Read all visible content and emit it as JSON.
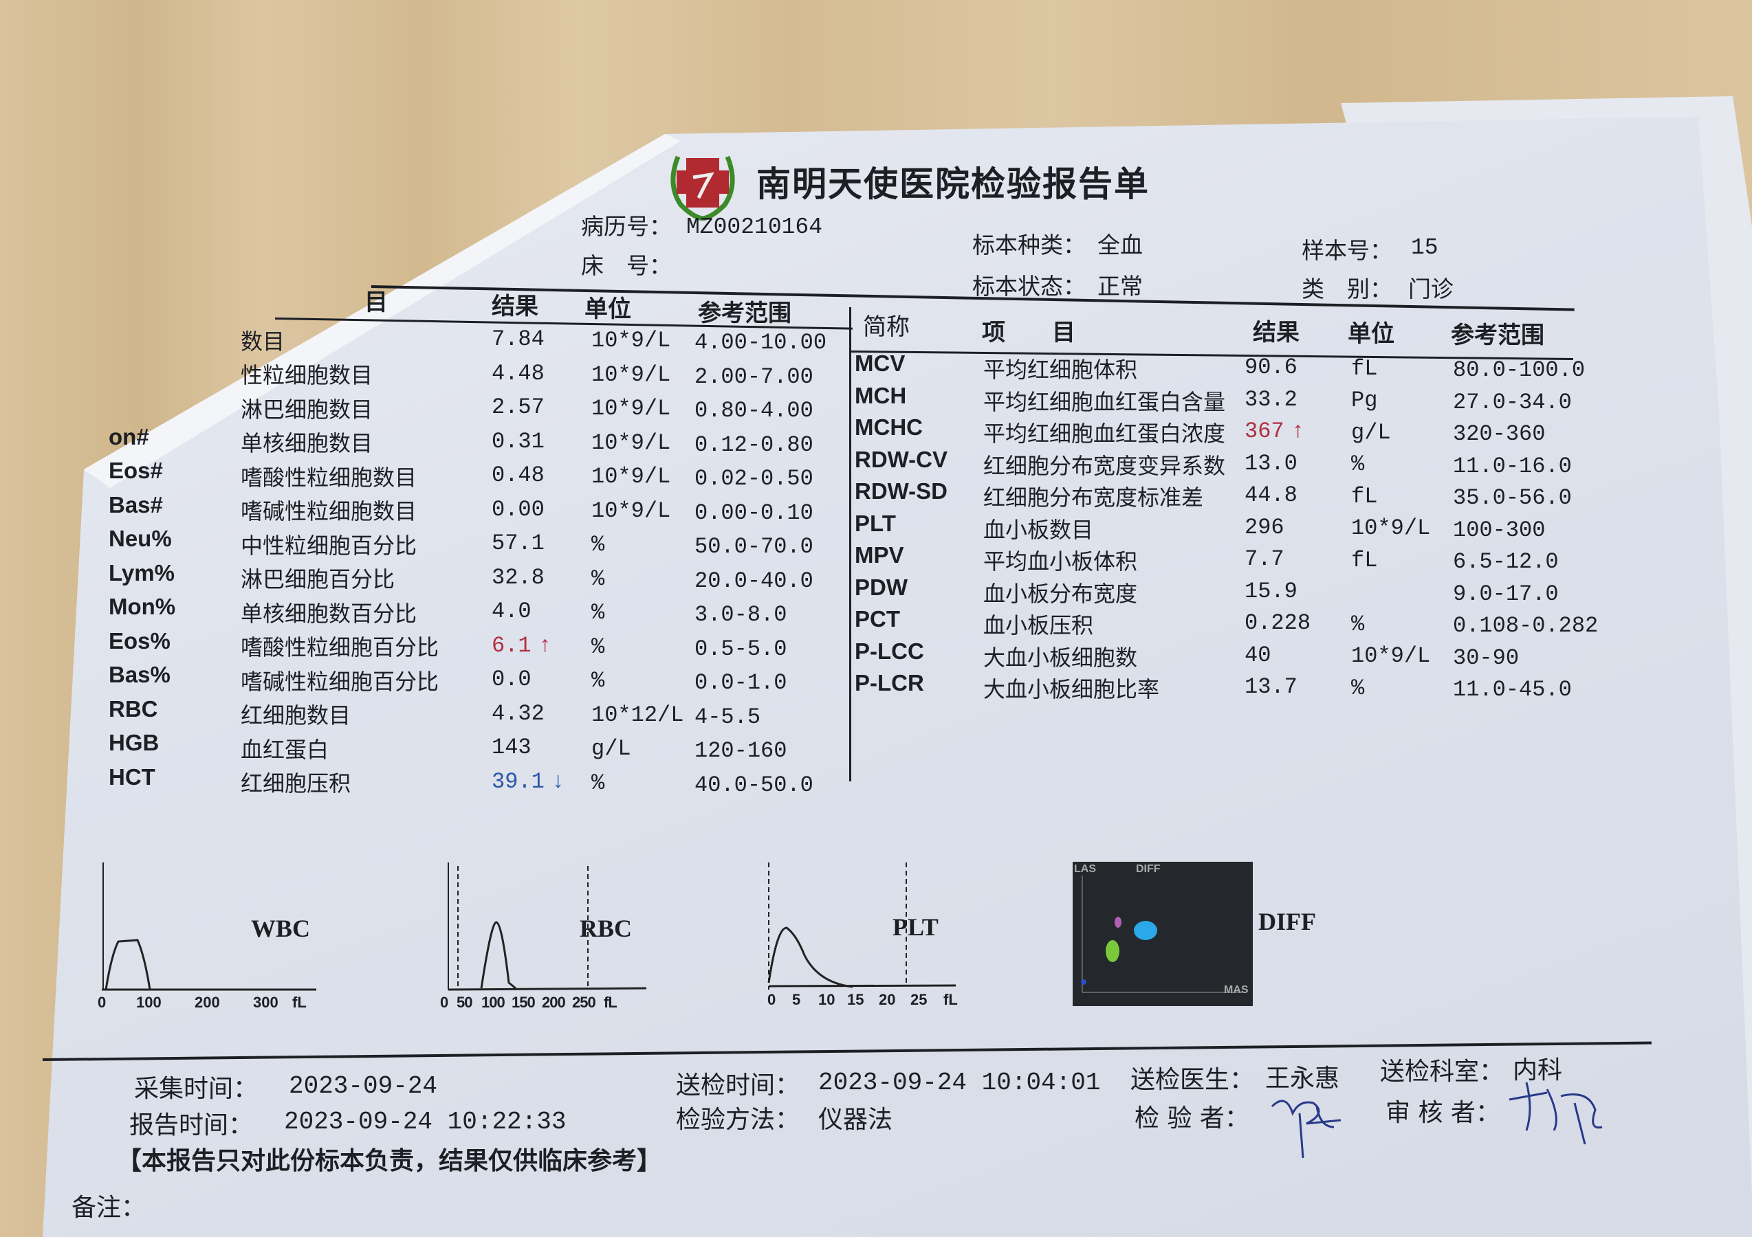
{
  "report": {
    "title": "南明天使医院检验报告单",
    "record_no_label": "病历号：",
    "record_no": "MZ00210164",
    "bed_label": "床　号：",
    "specimen_type_label": "标本种类：",
    "specimen_type": "全血",
    "specimen_status_label": "标本状态：",
    "specimen_status": "正常",
    "sample_no_label": "样本号：",
    "sample_no": "15",
    "category_label": "类　别：",
    "category": "门诊"
  },
  "left_table": {
    "headers": {
      "item": "目",
      "result": "结果",
      "unit": "单位",
      "range": "参考范围"
    },
    "rows": [
      {
        "code": "",
        "name": "数目",
        "result": "7.84",
        "unit": "10*9/L",
        "range": "4.00-10.00",
        "flag": ""
      },
      {
        "code": "",
        "name": "性粒细胞数目",
        "result": "4.48",
        "unit": "10*9/L",
        "range": "2.00-7.00",
        "flag": ""
      },
      {
        "code": "",
        "name": "淋巴细胞数目",
        "result": "2.57",
        "unit": "10*9/L",
        "range": "0.80-4.00",
        "flag": ""
      },
      {
        "code": "on#",
        "name": "单核细胞数目",
        "result": "0.31",
        "unit": "10*9/L",
        "range": "0.12-0.80",
        "flag": ""
      },
      {
        "code": "Eos#",
        "name": "嗜酸性粒细胞数目",
        "result": "0.48",
        "unit": "10*9/L",
        "range": "0.02-0.50",
        "flag": ""
      },
      {
        "code": "Bas#",
        "name": "嗜碱性粒细胞数目",
        "result": "0.00",
        "unit": "10*9/L",
        "range": "0.00-0.10",
        "flag": ""
      },
      {
        "code": "Neu%",
        "name": "中性粒细胞百分比",
        "result": "57.1",
        "unit": "%",
        "range": "50.0-70.0",
        "flag": ""
      },
      {
        "code": "Lym%",
        "name": "淋巴细胞百分比",
        "result": "32.8",
        "unit": "%",
        "range": "20.0-40.0",
        "flag": ""
      },
      {
        "code": "Mon%",
        "name": "单核细胞数百分比",
        "result": "4.0",
        "unit": "%",
        "range": "3.0-8.0",
        "flag": ""
      },
      {
        "code": "Eos%",
        "name": "嗜酸性粒细胞百分比",
        "result": "6.1",
        "unit": "%",
        "range": "0.5-5.0",
        "flag": "↑"
      },
      {
        "code": "Bas%",
        "name": "嗜碱性粒细胞百分比",
        "result": "0.0",
        "unit": "%",
        "range": "0.0-1.0",
        "flag": ""
      },
      {
        "code": "RBC",
        "name": "红细胞数目",
        "result": "4.32",
        "unit": "10*12/L",
        "range": "4-5.5",
        "flag": ""
      },
      {
        "code": "HGB",
        "name": "血红蛋白",
        "result": "143",
        "unit": "g/L",
        "range": "120-160",
        "flag": ""
      },
      {
        "code": "HCT",
        "name": "红细胞压积",
        "result": "39.1",
        "unit": "%",
        "range": "40.0-50.0",
        "flag": "↓"
      }
    ]
  },
  "right_table": {
    "headers": {
      "code": "简称",
      "item": "项　　目",
      "result": "结果",
      "unit": "单位",
      "range": "参考范围"
    },
    "rows": [
      {
        "code": "MCV",
        "name": "平均红细胞体积",
        "result": "90.6",
        "unit": "fL",
        "range": "80.0-100.0",
        "flag": ""
      },
      {
        "code": "MCH",
        "name": "平均红细胞血红蛋白含量",
        "result": "33.2",
        "unit": "Pg",
        "range": "27.0-34.0",
        "flag": ""
      },
      {
        "code": "MCHC",
        "name": "平均红细胞血红蛋白浓度",
        "result": "367",
        "unit": "g/L",
        "range": "320-360",
        "flag": "↑"
      },
      {
        "code": "RDW-CV",
        "name": "红细胞分布宽度变异系数",
        "result": "13.0",
        "unit": "%",
        "range": "11.0-16.0",
        "flag": ""
      },
      {
        "code": "RDW-SD",
        "name": "红细胞分布宽度标准差",
        "result": "44.8",
        "unit": "fL",
        "range": "35.0-56.0",
        "flag": ""
      },
      {
        "code": "PLT",
        "name": "血小板数目",
        "result": "296",
        "unit": "10*9/L",
        "range": "100-300",
        "flag": ""
      },
      {
        "code": "MPV",
        "name": "平均血小板体积",
        "result": "7.7",
        "unit": "fL",
        "range": "6.5-12.0",
        "flag": ""
      },
      {
        "code": "PDW",
        "name": "血小板分布宽度",
        "result": "15.9",
        "unit": "",
        "range": "9.0-17.0",
        "flag": ""
      },
      {
        "code": "PCT",
        "name": "血小板压积",
        "result": "0.228",
        "unit": "%",
        "range": "0.108-0.282",
        "flag": ""
      },
      {
        "code": "P-LCC",
        "name": "大血小板细胞数",
        "result": "40",
        "unit": "10*9/L",
        "range": "30-90",
        "flag": ""
      },
      {
        "code": "P-LCR",
        "name": "大血小板细胞比率",
        "result": "13.7",
        "unit": "%",
        "range": "11.0-45.0",
        "flag": ""
      }
    ]
  },
  "histograms": {
    "wbc": {
      "label": "WBC",
      "ticks": [
        "0",
        "100",
        "200",
        "300",
        "fL"
      ]
    },
    "rbc": {
      "label": "RBC",
      "ticks": [
        "0",
        "50",
        "100",
        "150",
        "200",
        "250",
        "fL"
      ]
    },
    "plt": {
      "label": "PLT",
      "ticks": [
        "0",
        "5",
        "10",
        "15",
        "20",
        "25",
        "fL"
      ]
    },
    "diff": {
      "label": "DIFF",
      "axis_y": "LAS",
      "axis_top": "DIFF",
      "axis_x": "MAS"
    }
  },
  "footer": {
    "collect_time_label": "采集时间：",
    "collect_time": "2023-09-24",
    "report_time_label": "报告时间：",
    "report_time": "2023-09-24 10:22:33",
    "submit_time_label": "送检时间：",
    "submit_time": "2023-09-24 10:04:01",
    "method_label": "检验方法：",
    "method": "仪器法",
    "doctor_label": "送检医生：",
    "doctor": "王永惠",
    "dept_label": "送检科室：",
    "dept": "内科",
    "tester_label": "检 验 者：",
    "reviewer_label": "审 核 者：",
    "disclaimer": "【本报告只对此份标本负责，结果仅供临床参考】",
    "remarks_label": "备注："
  },
  "colors": {
    "high_flag": "#b0303e",
    "low_flag": "#2a55a8",
    "logo_cross": "#b02a30",
    "logo_wreath": "#3c8a2a"
  }
}
